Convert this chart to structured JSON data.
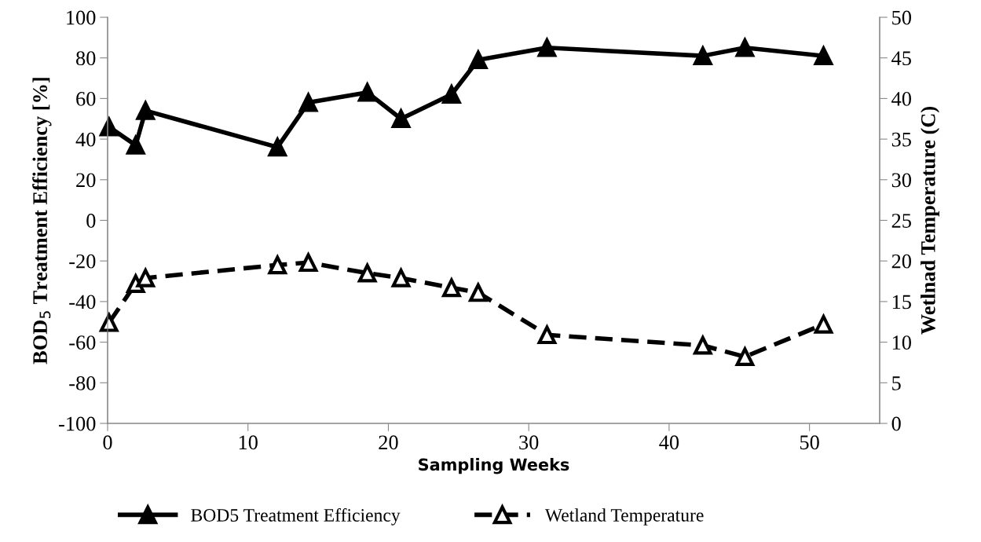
{
  "chart_data": {
    "type": "line",
    "xlabel": "Sampling Weeks",
    "ylabel": "BOD$_{5}$ Treatment Efficiency [%]",
    "y2label": "Wetlnad Temperature (C)",
    "x": [
      0.1,
      2.0,
      2.7,
      12.1,
      14.3,
      18.5,
      20.9,
      24.5,
      26.4,
      31.3,
      42.4,
      45.4,
      51.0
    ],
    "xlim": [
      0,
      55
    ],
    "xticks": [
      0,
      10,
      20,
      30,
      40,
      50
    ],
    "ylim": [
      -100,
      100
    ],
    "yticks": [
      -100,
      -80,
      -60,
      -40,
      -20,
      0,
      20,
      40,
      60,
      80,
      100
    ],
    "y2lim": [
      0,
      50
    ],
    "y2ticks": [
      0,
      5,
      10,
      15,
      20,
      25,
      30,
      35,
      40,
      45,
      50
    ],
    "legend": "bottom",
    "grid": false,
    "marker": "triangle",
    "series": [
      {
        "name": "BOD5 Treatment Efficiency",
        "color": "#000000",
        "line_style": "solid",
        "values": [
          46,
          37,
          54,
          36,
          58,
          63,
          50,
          62,
          79,
          85,
          81,
          85,
          81
        ]
      },
      {
        "name": "Wetland Temperature",
        "color": "#000000",
        "line_style": "dashed",
        "axis": "y2",
        "values": [
          12.4,
          17.2,
          17.9,
          19.5,
          19.8,
          18.5,
          17.9,
          16.7,
          16.1,
          10.9,
          9.6,
          8.2,
          12.2
        ]
      }
    ]
  }
}
